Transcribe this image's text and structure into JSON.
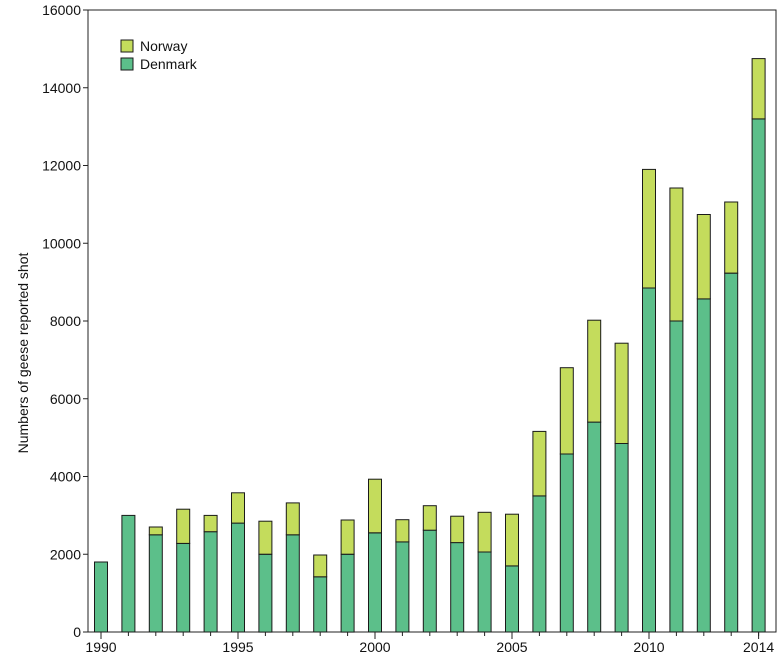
{
  "chart_data": {
    "type": "bar",
    "stacked": true,
    "ylabel": "Numbers of geese reported shot",
    "xlabel": "",
    "ylim": [
      0,
      16000
    ],
    "yticks": [
      0,
      2000,
      4000,
      6000,
      8000,
      10000,
      12000,
      14000,
      16000
    ],
    "ytick_labels": [
      "0",
      "2000",
      "4000",
      "6000",
      "8000",
      "10000",
      "12000",
      "14000",
      "16000"
    ],
    "xticks": [
      1990,
      1995,
      2000,
      2005,
      2010,
      2014
    ],
    "xtick_labels": [
      "1990",
      "1995",
      "2000",
      "2005",
      "2010",
      "2014"
    ],
    "categories": [
      1990,
      1991,
      1992,
      1993,
      1994,
      1995,
      1996,
      1997,
      1998,
      1999,
      2000,
      2001,
      2002,
      2003,
      2004,
      2005,
      2006,
      2007,
      2008,
      2009,
      2010,
      2011,
      2012,
      2013,
      2014
    ],
    "legend_position": "top-left",
    "grid": false,
    "series": [
      {
        "name": "Denmark",
        "color": "#5cbf8a",
        "values": [
          1800,
          3000,
          2500,
          2280,
          2580,
          2800,
          2000,
          2500,
          1420,
          2000,
          2550,
          2320,
          2620,
          2300,
          2060,
          1700,
          3500,
          4580,
          5400,
          4850,
          8850,
          8000,
          8570,
          9230,
          13200
        ]
      },
      {
        "name": "Norway",
        "color": "#c4dc5c",
        "values": [
          0,
          0,
          200,
          880,
          420,
          780,
          850,
          820,
          560,
          880,
          1380,
          570,
          630,
          680,
          1020,
          1330,
          1660,
          2220,
          2620,
          2580,
          3050,
          3420,
          2170,
          1830,
          1550
        ]
      }
    ],
    "legend": [
      {
        "name": "Norway",
        "color": "#c4dc5c"
      },
      {
        "name": "Denmark",
        "color": "#5cbf8a"
      }
    ]
  }
}
